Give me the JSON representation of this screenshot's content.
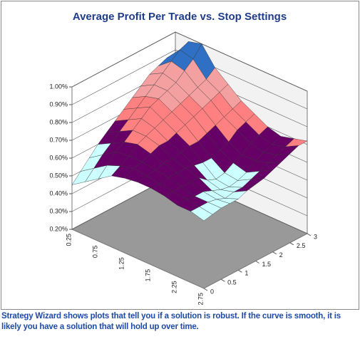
{
  "chart_data": {
    "type": "surface",
    "title": "Average Profit Per Trade vs. Stop Settings",
    "categories": [
      "0.25",
      null,
      "0.75",
      null,
      "1.25",
      null,
      "1.75",
      null,
      "2.25",
      null,
      "2.75"
    ],
    "depth": [
      0,
      0.25,
      0.5,
      0.75,
      1,
      1.25,
      1.5,
      1.75,
      2,
      2.25,
      2.5,
      2.75,
      3
    ],
    "depthlim": [
      0,
      3
    ],
    "depthticks": [
      0,
      0.5,
      1,
      1.5,
      2,
      2.5,
      3
    ],
    "zlim": [
      0.2,
      1.0
    ],
    "zticks": [
      {
        "value": 0.2,
        "label": "0.20%"
      },
      {
        "value": 0.3,
        "label": "0.30%"
      },
      {
        "value": 0.4,
        "label": "0.40%"
      },
      {
        "value": 0.5,
        "label": "0.50%"
      },
      {
        "value": 0.6,
        "label": "0.60%"
      },
      {
        "value": 0.7,
        "label": "0.70%"
      },
      {
        "value": 0.8,
        "label": "0.80%"
      },
      {
        "value": 0.9,
        "label": "0.90%"
      },
      {
        "value": 1.0,
        "label": "1.00%"
      }
    ],
    "band_colors": [
      "#9999ff",
      "#993366",
      "#ffffcc",
      "#ccffff",
      "#660066",
      "#ff8080",
      "#f4a0a0",
      "#2f6fc4"
    ],
    "values": [
      [
        0.45,
        0.5,
        0.55,
        0.6,
        0.62,
        0.63,
        0.63,
        0.62,
        0.6,
        0.6,
        0.58
      ],
      [
        0.5,
        0.55,
        0.6,
        0.63,
        0.65,
        0.64,
        0.63,
        0.62,
        0.61,
        0.6,
        0.59
      ],
      [
        0.55,
        0.6,
        0.65,
        0.66,
        0.66,
        0.65,
        0.64,
        0.62,
        0.6,
        0.6,
        0.6
      ],
      [
        0.6,
        0.64,
        0.68,
        0.7,
        0.68,
        0.66,
        0.64,
        0.62,
        0.6,
        0.59,
        0.6
      ],
      [
        0.64,
        0.68,
        0.72,
        0.72,
        0.7,
        0.66,
        0.64,
        0.62,
        0.58,
        0.57,
        0.6
      ],
      [
        0.68,
        0.72,
        0.76,
        0.74,
        0.7,
        0.67,
        0.63,
        0.58,
        0.56,
        0.58,
        0.62
      ],
      [
        0.72,
        0.76,
        0.8,
        0.76,
        0.72,
        0.68,
        0.62,
        0.56,
        0.55,
        0.58,
        0.63
      ],
      [
        0.76,
        0.8,
        0.82,
        0.78,
        0.74,
        0.68,
        0.62,
        0.57,
        0.56,
        0.6,
        0.64
      ],
      [
        0.8,
        0.84,
        0.84,
        0.8,
        0.76,
        0.7,
        0.64,
        0.6,
        0.58,
        0.62,
        0.66
      ],
      [
        0.84,
        0.88,
        0.86,
        0.82,
        0.78,
        0.72,
        0.66,
        0.62,
        0.62,
        0.64,
        0.68
      ],
      [
        0.86,
        0.92,
        0.9,
        0.84,
        0.8,
        0.74,
        0.7,
        0.66,
        0.64,
        0.66,
        0.7
      ],
      [
        0.88,
        0.96,
        0.94,
        0.86,
        0.82,
        0.76,
        0.72,
        0.68,
        0.66,
        0.68,
        0.72
      ],
      [
        0.86,
        0.98,
        1.0,
        0.9,
        0.84,
        0.78,
        0.74,
        0.7,
        0.68,
        0.7,
        0.72
      ]
    ],
    "grid": true
  },
  "caption": "Strategy Wizard shows plots that tell you if a solution is robust. If the curve is smooth, it is likely you have a solution that will hold up over time."
}
